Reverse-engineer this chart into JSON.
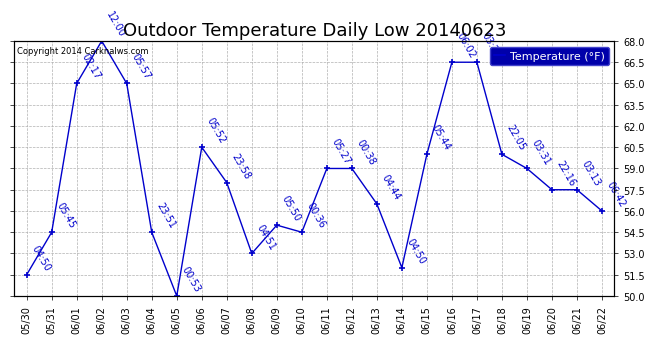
{
  "title": "Outdoor Temperature Daily Low 20140623",
  "copyright": "Copyright 2014 Carknalws.com",
  "legend_label": "Temperature (°F)",
  "x_labels": [
    "05/30",
    "05/31",
    "06/01",
    "06/02",
    "06/03",
    "06/04",
    "06/05",
    "06/06",
    "06/07",
    "06/08",
    "06/09",
    "06/10",
    "06/11",
    "06/12",
    "06/13",
    "06/14",
    "06/15",
    "06/16",
    "06/17",
    "06/18",
    "06/19",
    "06/20",
    "06/21",
    "06/22"
  ],
  "temperatures": [
    51.5,
    54.5,
    65.0,
    68.0,
    65.0,
    54.5,
    50.0,
    60.5,
    58.0,
    53.0,
    55.0,
    54.5,
    59.0,
    59.0,
    56.5,
    52.0,
    60.0,
    66.5,
    66.5,
    60.0,
    59.0,
    57.5,
    57.5,
    56.0
  ],
  "times": [
    "04:50",
    "05:45",
    "02:17",
    "12:00",
    "05:57",
    "23:51",
    "00:53",
    "05:52",
    "23:58",
    "04:51",
    "05:50",
    "00:36",
    "05:27",
    "00:38",
    "04:44",
    "04:50",
    "05:44",
    "06:02",
    "03:27",
    "22:05",
    "03:31",
    "22:16",
    "03:13",
    "06:42"
  ],
  "line_color": "#0000CC",
  "marker_color": "#0000CC",
  "bg_color": "#ffffff",
  "plot_bg_color": "#ffffff",
  "grid_color": "#b0b0b0",
  "ylim": [
    50.0,
    68.0
  ],
  "yticks": [
    50.0,
    51.5,
    53.0,
    54.5,
    56.0,
    57.5,
    59.0,
    60.5,
    62.0,
    63.5,
    65.0,
    66.5,
    68.0
  ],
  "title_fontsize": 13,
  "label_fontsize": 7,
  "tick_fontsize": 7,
  "legend_fontsize": 8
}
